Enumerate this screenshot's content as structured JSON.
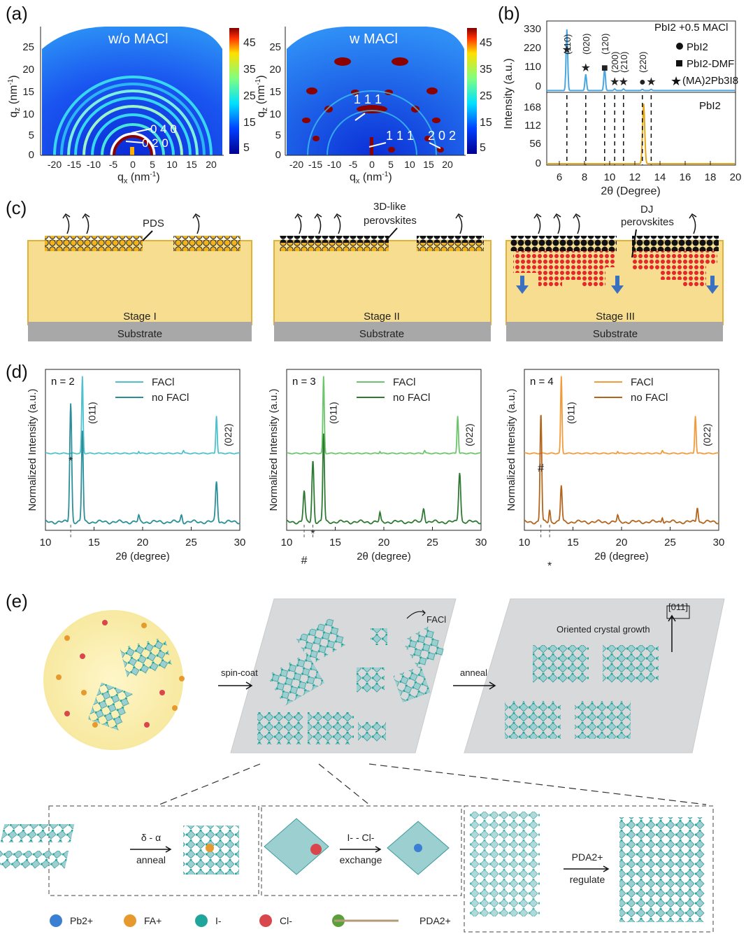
{
  "panel_labels": {
    "a": "(a)",
    "b": "(b)",
    "c": "(c)",
    "d": "(d)",
    "e": "(e)"
  },
  "panel_a": {
    "left": {
      "title": "w/o MACl",
      "annotations": [
        "0 4 0",
        "0 2 0"
      ],
      "xlabel": "q",
      "xlabel_sub": "x",
      "xlabel_unit": " (nm",
      "ylabel": "q",
      "ylabel_sub": "z",
      "xticks": [
        "-20",
        "-15",
        "-10",
        "-5",
        "0",
        "5",
        "10",
        "15",
        "20"
      ],
      "yticks": [
        "25",
        "20",
        "15",
        "10",
        "5",
        "0"
      ],
      "colorbar_ticks": [
        "45",
        "35",
        "25",
        "15",
        "5"
      ]
    },
    "right": {
      "title": "w MACl",
      "annotations": [
        "1 1 1",
        "1 1 1",
        "2 0 2"
      ],
      "xticks": [
        "-20",
        "-15",
        "-10",
        "-5",
        "0",
        "5",
        "10",
        "15",
        "20"
      ],
      "yticks": [
        "25",
        "20",
        "15",
        "10",
        "5",
        "0"
      ],
      "colorbar_ticks": [
        "45",
        "35",
        "25",
        "15",
        "5"
      ]
    }
  },
  "chart_data": [
    {
      "type": "line",
      "panel": "b-top",
      "legend": [
        "PbI2 +0.5 MACl",
        "PbI2",
        "PbI2-DMF",
        "(MA)2Pb3I8"
      ],
      "ylabel": "Intensity (a.u.)",
      "yticks": [
        "330",
        "220",
        "110",
        "0"
      ],
      "peak_labels": [
        "(110)",
        "(020)",
        "(120)",
        "(200)",
        "(210)",
        "(220)"
      ],
      "x": [
        6.6,
        8.1,
        9.6,
        10.4,
        11.1,
        12.6,
        13.3
      ],
      "values": [
        300,
        80,
        110,
        8,
        8,
        6,
        6
      ],
      "color": "#4aa6e0"
    },
    {
      "type": "line",
      "panel": "b-bottom",
      "legend": [
        "PbI2"
      ],
      "yticks": [
        "168",
        "112",
        "56",
        "0"
      ],
      "xticks": [
        "6",
        "8",
        "10",
        "12",
        "14",
        "16",
        "18",
        "20"
      ],
      "xlabel": "2θ (Degree)",
      "x": [
        12.7
      ],
      "values": [
        180
      ],
      "color": "#e6a817"
    },
    {
      "type": "line",
      "panel": "d-n2",
      "title": "n = 2",
      "series": [
        {
          "name": "FACl"
        },
        {
          "name": "no FACl"
        }
      ],
      "peak_labels": [
        "(011)",
        "(022)",
        "*"
      ],
      "xlabel": "2θ (degree)",
      "ylabel": "Normalized Intensity (a.u.)",
      "xticks": [
        "10",
        "15",
        "20",
        "25",
        "30"
      ]
    },
    {
      "type": "line",
      "panel": "d-n3",
      "title": "n = 3",
      "series": [
        {
          "name": "FACl"
        },
        {
          "name": "no FACl"
        }
      ],
      "peak_labels": [
        "(011)",
        "(022)",
        "#",
        "*"
      ],
      "xlabel": "2θ (degree)",
      "ylabel": "Normalized Intensity (a.u.)",
      "xticks": [
        "10",
        "15",
        "20",
        "25",
        "30"
      ]
    },
    {
      "type": "line",
      "panel": "d-n4",
      "title": "n = 4",
      "series": [
        {
          "name": "FACl"
        },
        {
          "name": "no FACl"
        }
      ],
      "peak_labels": [
        "(011)",
        "(022)",
        "#",
        "*"
      ],
      "xlabel": "2θ (degree)",
      "ylabel": "Normalized Intensity (a.u.)",
      "xticks": [
        "10",
        "15",
        "20",
        "25",
        "30"
      ]
    }
  ],
  "panel_c": {
    "stages": [
      {
        "label": "Stage I",
        "callout": "PDS"
      },
      {
        "label": "Stage II",
        "callout": "3D-like perovskites"
      },
      {
        "label": "Stage III",
        "callout": "DJ perovskites"
      }
    ],
    "substrate": "Substrate"
  },
  "panel_e": {
    "spin_coat": "spin-coat",
    "anneal": "anneal",
    "facl": "FACl",
    "oriented": "Oriented crystal growth",
    "direction": "[011]",
    "boxes": [
      {
        "top": "δ - α",
        "bottom": "anneal"
      },
      {
        "top": "I- - Cl-",
        "bottom": "exchange"
      },
      {
        "top": "PDA2+",
        "bottom": "regulate"
      }
    ],
    "legend": [
      {
        "label": "Pb2+",
        "color": "#3b7fd4"
      },
      {
        "label": "FA+",
        "color": "#e69a2e"
      },
      {
        "label": "I-",
        "color": "#1fa59a"
      },
      {
        "label": "Cl-",
        "color": "#d9464b"
      },
      {
        "label": "PDA2+",
        "color": "#5aa03a"
      }
    ]
  },
  "colors": {
    "stage_bg": "#f7dd8f",
    "substrate": "#a8a8a8",
    "n2": "#4fc0cc",
    "n2_dark": "#2a8f98",
    "n3": "#6cc56a",
    "n3_dark": "#2f7a33",
    "n4": "#f39a3a",
    "n4_dark": "#b4651d"
  }
}
